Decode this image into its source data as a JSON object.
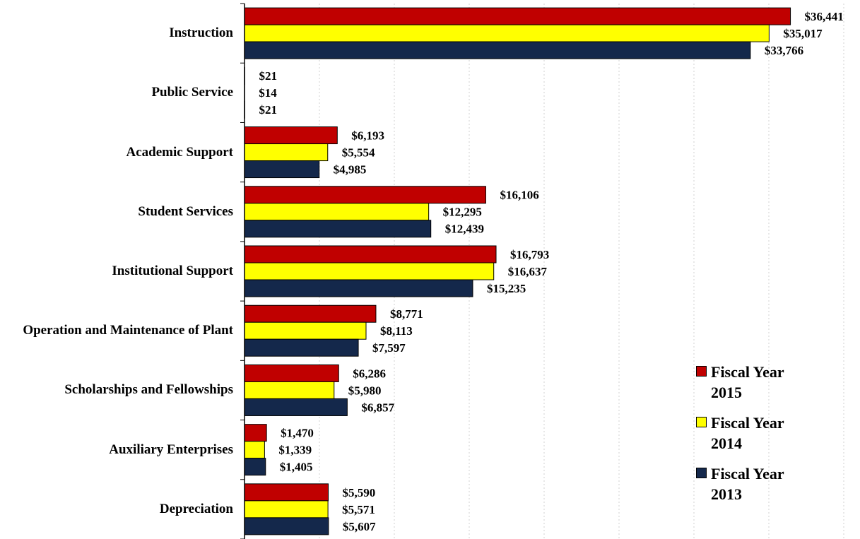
{
  "chart_data": {
    "type": "bar",
    "orientation": "horizontal",
    "categories": [
      "Instruction",
      "Public Service",
      "Academic Support",
      "Student Services",
      "Institutional Support",
      "Operation and Maintenance of Plant",
      "Scholarships and Fellowships",
      "Auxiliary Enterprises",
      "Depreciation"
    ],
    "series": [
      {
        "name": "Fiscal Year 2015",
        "color": "#c00000",
        "values": [
          36441,
          21,
          6193,
          16106,
          16793,
          8771,
          6286,
          1470,
          5590
        ],
        "value_labels": [
          "$36,441",
          "$21",
          "$6,193",
          "$16,106",
          "$16,793",
          "$8,771",
          "$6,286",
          "$1,470",
          "$5,590"
        ]
      },
      {
        "name": "Fiscal Year 2014",
        "color": "#ffff00",
        "values": [
          35017,
          14,
          5554,
          12295,
          16637,
          8113,
          5980,
          1339,
          5571
        ],
        "value_labels": [
          "$35,017",
          "$14",
          "$5,554",
          "$12,295",
          "$16,637",
          "$8,113",
          "$5,980",
          "$1,339",
          "$5,571"
        ]
      },
      {
        "name": "Fiscal Year 2013",
        "color": "#14284b",
        "values": [
          33766,
          21,
          4985,
          12439,
          15235,
          7597,
          6857,
          1405,
          5607
        ],
        "value_labels": [
          "$33,766",
          "$21",
          "$4,985",
          "$12,439",
          "$15,235",
          "$7,597",
          "$6,857",
          "$1,405",
          "$5,607"
        ]
      }
    ],
    "xlim": [
      0,
      40000
    ],
    "xticks": [
      0,
      5000,
      10000,
      15000,
      20000,
      25000,
      30000,
      35000,
      40000
    ],
    "grid": true,
    "legend": "right"
  }
}
